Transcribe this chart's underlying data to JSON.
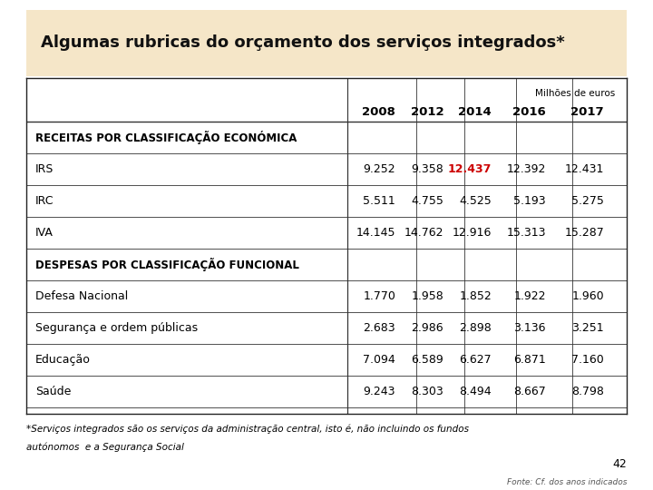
{
  "title": "Algumas rubricas do orçamento dos serviços integrados*",
  "title_bg": "#f5e6c8",
  "milhoes_label": "Milhões de euros",
  "columns": [
    "2008",
    "2012",
    "2014",
    "2016",
    "2017"
  ],
  "section1_header": "RECEITAS POR CLASSIFICAÇÃO ECONÓMICA",
  "section2_header": "DESPESAS POR CLASSIFICAÇÃO FUNCIONAL",
  "rows": [
    {
      "label": "IRS",
      "values": [
        "9.252",
        "9.358",
        "12.437",
        "12.392",
        "12.431"
      ],
      "highlight_col": 2
    },
    {
      "label": "IRC",
      "values": [
        "5.511",
        "4.755",
        "4.525",
        "5.193",
        "5.275"
      ],
      "highlight_col": -1
    },
    {
      "label": "IVA",
      "values": [
        "14.145",
        "14.762",
        "12.916",
        "15.313",
        "15.287"
      ],
      "highlight_col": -1
    },
    {
      "label": "Defesa Nacional",
      "values": [
        "1.770",
        "1.958",
        "1.852",
        "1.922",
        "1.960"
      ],
      "highlight_col": -1
    },
    {
      "label": "Segurança e ordem públicas",
      "values": [
        "2.683",
        "2.986",
        "2.898",
        "3.136",
        "3.251"
      ],
      "highlight_col": -1
    },
    {
      "label": "Educação",
      "values": [
        "7.094",
        "6.589",
        "6.627",
        "6.871",
        "7.160"
      ],
      "highlight_col": -1
    },
    {
      "label": "Saúde",
      "values": [
        "9.243",
        "8.303",
        "8.494",
        "8.667",
        "8.798"
      ],
      "highlight_col": -1
    }
  ],
  "footnote_line1": "*Serviços integrados são os serviços da administração central, isto é, não incluindo os fundos",
  "footnote_line2": "autónomos  e a Segurança Social",
  "fonte": "Fonte: Cf. dos anos indicados",
  "page_num": "42",
  "highlight_color": "#cc0000",
  "normal_color": "#000000",
  "header_color": "#000000",
  "table_bg": "#ffffff",
  "outer_bg": "#ffffff",
  "title_fontsize": 13.0,
  "col_header_fontsize": 9.5,
  "data_fontsize": 9.0,
  "section_fontsize": 8.5,
  "footnote_fontsize": 7.5,
  "fonte_fontsize": 6.5,
  "page_fontsize": 9.0
}
